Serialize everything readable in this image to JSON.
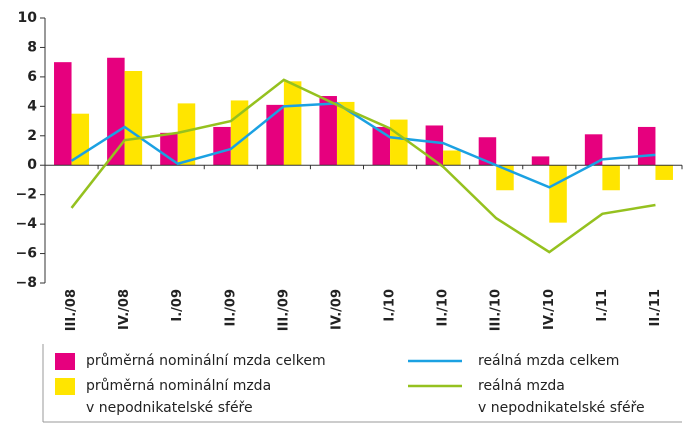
{
  "chart_data": {
    "type": "bar_line",
    "categories": [
      "III./08",
      "IV./08",
      "I./09",
      "II./09",
      "III./09",
      "IV./09",
      "I./10",
      "II./10",
      "III./10",
      "IV./10",
      "I./11",
      "II./11"
    ],
    "series": [
      {
        "name": "průměrná nominální mzda celkem",
        "kind": "bar",
        "color": "#e6007e",
        "values": [
          7.0,
          7.3,
          2.2,
          2.6,
          4.1,
          4.7,
          2.6,
          2.7,
          1.9,
          0.6,
          2.1,
          2.6
        ]
      },
      {
        "name": "průměrná nominální mzda\nv nepodnikatelské sféře",
        "kind": "bar",
        "color": "#ffe500",
        "values": [
          3.5,
          6.4,
          4.2,
          4.4,
          5.7,
          4.3,
          3.1,
          1.0,
          -1.7,
          -3.9,
          -1.7,
          -1.0
        ]
      },
      {
        "name": "reálná mzda celkem",
        "kind": "line",
        "color": "#1ba1e2",
        "values": [
          0.3,
          2.6,
          0.1,
          1.1,
          4.0,
          4.2,
          1.9,
          1.5,
          0.0,
          -1.5,
          0.4,
          0.7
        ]
      },
      {
        "name": "reálná mzda\nv nepodnikatelské sféře",
        "kind": "line",
        "color": "#95c11f",
        "values": [
          -2.9,
          1.7,
          2.2,
          3.0,
          5.8,
          4.1,
          2.5,
          -0.1,
          -3.6,
          -5.9,
          -3.3,
          -2.7
        ]
      }
    ],
    "ylim": [
      -8,
      10
    ],
    "yticks": [
      {
        "value": -8,
        "label": "−8"
      },
      {
        "value": -6,
        "label": "−6"
      },
      {
        "value": -4,
        "label": "−4"
      },
      {
        "value": -2,
        "label": "−2"
      },
      0,
      2,
      4,
      6,
      8,
      10
    ]
  }
}
